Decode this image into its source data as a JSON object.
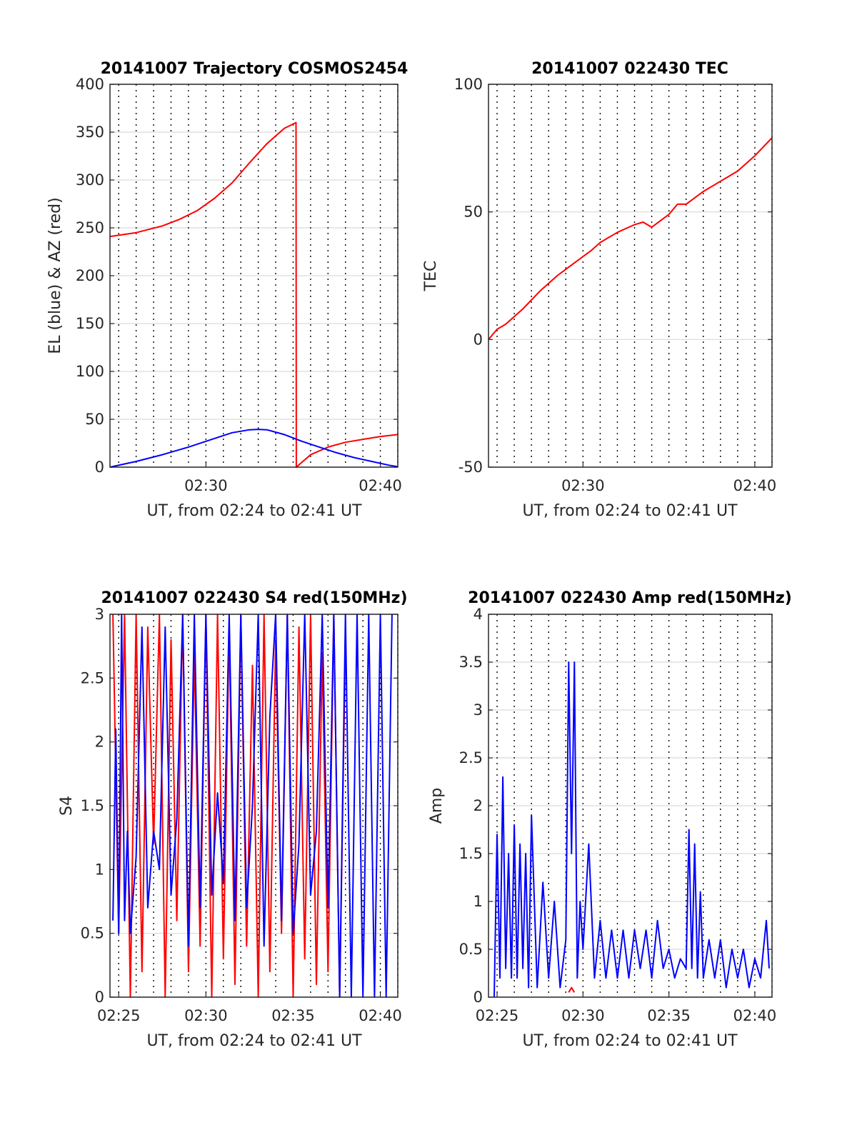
{
  "chart_data": [
    {
      "type": "line",
      "title": "20141007 Trajectory COSMOS2454",
      "xlabel": "UT, from 02:24 to 02:41 UT",
      "ylabel": "EL (blue) & AZ (red)",
      "xlim": [
        "02:24:30",
        "02:41:00"
      ],
      "ylim": [
        0,
        400
      ],
      "x_ticks": [
        "02:30",
        "02:40"
      ],
      "y_ticks": [
        "0",
        "50",
        "100",
        "150",
        "200",
        "250",
        "300",
        "350",
        "400"
      ],
      "grid": true,
      "series": [
        {
          "color": "#ff0000",
          "x": [
            "02:24:30",
            "02:26:00",
            "02:27:30",
            "02:28:30",
            "02:29:30",
            "02:30:30",
            "02:31:30",
            "02:32:30",
            "02:33:30",
            "02:34:30",
            "02:35:10",
            "02:35:11",
            "02:36:00",
            "02:37:00",
            "02:38:00",
            "02:39:00",
            "02:40:00",
            "02:41:00"
          ],
          "y": [
            241,
            245,
            252,
            259,
            268,
            281,
            297,
            318,
            338,
            354,
            360,
            0,
            13,
            21,
            26,
            29,
            32,
            34
          ]
        },
        {
          "color": "#0000ff",
          "x": [
            "02:24:30",
            "02:26:00",
            "02:27:30",
            "02:29:00",
            "02:30:30",
            "02:31:30",
            "02:32:30",
            "02:33:00",
            "02:33:30",
            "02:34:30",
            "02:35:30",
            "02:36:30",
            "02:37:30",
            "02:38:30",
            "02:39:30",
            "02:40:30",
            "02:41:00"
          ],
          "y": [
            0,
            6,
            13,
            21,
            30,
            36,
            39,
            39.5,
            39,
            34,
            27,
            21,
            15,
            10,
            6,
            2,
            0.5
          ]
        }
      ]
    },
    {
      "type": "line",
      "title": "20141007 022430 TEC",
      "xlabel": "UT, from 02:24 to 02:41 UT",
      "ylabel": "TEC",
      "xlim": [
        "02:24:30",
        "02:41:00"
      ],
      "ylim": [
        -50,
        100
      ],
      "x_ticks": [
        "02:30",
        "02:40"
      ],
      "y_ticks": [
        "-50",
        "0",
        "50",
        "100"
      ],
      "grid": true,
      "series": [
        {
          "color": "#ff0000",
          "x": [
            "02:24:30",
            "02:25:00",
            "02:25:30",
            "02:26:30",
            "02:27:30",
            "02:28:30",
            "02:29:30",
            "02:30:30",
            "02:31:00",
            "02:32:00",
            "02:33:00",
            "02:33:30",
            "02:34:00",
            "02:35:00",
            "02:35:30",
            "02:36:00",
            "02:37:00",
            "02:38:00",
            "02:39:00",
            "02:40:00",
            "02:41:00"
          ],
          "y": [
            0,
            4,
            6,
            12,
            19,
            25,
            30,
            35,
            38,
            42,
            45,
            46,
            44,
            49,
            53,
            53,
            58,
            62,
            66,
            72,
            79
          ]
        }
      ]
    },
    {
      "type": "line",
      "title": "20141007 022430 S4 red(150MHz)",
      "xlabel": "UT, from 02:24 to 02:41 UT",
      "ylabel": "S4",
      "xlim": [
        "02:24:30",
        "02:41:00"
      ],
      "ylim": [
        0,
        3
      ],
      "x_ticks": [
        "02:25",
        "02:30",
        "02:35",
        "02:40"
      ],
      "y_ticks": [
        "0",
        "0.5",
        "1",
        "1.5",
        "2",
        "2.5",
        "3"
      ],
      "grid": true,
      "series": [
        {
          "color": "#ff0000",
          "x": [
            "02:24:40",
            "02:25:00",
            "02:25:20",
            "02:25:40",
            "02:26:00",
            "02:26:20",
            "02:26:40",
            "02:27:00",
            "02:27:20",
            "02:27:40",
            "02:28:00",
            "02:28:20",
            "02:28:40",
            "02:29:00",
            "02:29:20",
            "02:29:40",
            "02:30:00",
            "02:30:20",
            "02:30:40",
            "02:31:00",
            "02:31:20",
            "02:31:40",
            "02:32:00",
            "02:32:20",
            "02:32:40",
            "02:33:00",
            "02:33:20",
            "02:33:40",
            "02:34:00",
            "02:34:20",
            "02:34:40",
            "02:35:00",
            "02:35:20",
            "02:35:40",
            "02:36:00",
            "02:36:20",
            "02:36:40",
            "02:37:00",
            "02:37:20",
            "02:37:40",
            "02:38:00"
          ],
          "y": [
            3,
            0.5,
            3,
            0,
            3,
            0.2,
            2.9,
            1.2,
            3,
            0,
            2.8,
            0.6,
            3,
            0.2,
            2.7,
            0.4,
            3,
            0,
            3,
            0.3,
            2.9,
            0.1,
            3,
            0.4,
            2.6,
            0,
            3,
            0.2,
            2.8,
            0.5,
            3,
            0,
            2.9,
            0.3,
            3,
            0.1,
            2.7,
            0.2,
            3,
            0,
            2.8
          ]
        },
        {
          "color": "#0000ff",
          "x": [
            "02:24:40",
            "02:24:50",
            "02:25:00",
            "02:25:10",
            "02:25:20",
            "02:25:30",
            "02:25:40",
            "02:26:00",
            "02:26:20",
            "02:26:40",
            "02:27:00",
            "02:27:20",
            "02:27:40",
            "02:28:00",
            "02:28:20",
            "02:28:40",
            "02:29:00",
            "02:29:20",
            "02:29:40",
            "02:30:00",
            "02:30:20",
            "02:30:40",
            "02:31:00",
            "02:31:20",
            "02:31:40",
            "02:32:00",
            "02:32:20",
            "02:32:40",
            "02:33:00",
            "02:33:20",
            "02:33:40",
            "02:34:00",
            "02:34:20",
            "02:34:40",
            "02:35:00",
            "02:35:20",
            "02:35:40",
            "02:36:00",
            "02:36:20",
            "02:36:40",
            "02:37:00",
            "02:37:20",
            "02:37:40",
            "02:38:00",
            "02:38:20",
            "02:38:40",
            "02:39:00",
            "02:39:20",
            "02:39:40",
            "02:40:00",
            "02:40:20",
            "02:40:40"
          ],
          "y": [
            0.6,
            2.1,
            0.5,
            3,
            0.6,
            1.3,
            0.5,
            1.1,
            2.9,
            0.7,
            1.3,
            1.0,
            2.9,
            0.8,
            1.4,
            3,
            0.4,
            3,
            0.7,
            3,
            0.8,
            1.6,
            0.9,
            3,
            0.6,
            3,
            0.7,
            1.5,
            3,
            0.4,
            2.2,
            3,
            0.6,
            3,
            0.5,
            1.2,
            3,
            0.8,
            1.3,
            3,
            0.7,
            3,
            0,
            3,
            0,
            3,
            0,
            3,
            0,
            3,
            0,
            3
          ]
        }
      ]
    },
    {
      "type": "line",
      "title": "20141007 022430 Amp red(150MHz)",
      "xlabel": "UT, from 02:24 to 02:41 UT",
      "ylabel": "Amp",
      "xlim": [
        "02:24:30",
        "02:41:00"
      ],
      "ylim": [
        0,
        4
      ],
      "x_ticks": [
        "02:25",
        "02:30",
        "02:35",
        "02:40"
      ],
      "y_ticks": [
        "0",
        "0.5",
        "1",
        "1.5",
        "2",
        "2.5",
        "3",
        "3.5",
        "4"
      ],
      "grid": true,
      "series": [
        {
          "color": "#ff0000",
          "x": [
            "02:29:10",
            "02:29:20",
            "02:29:30"
          ],
          "y": [
            0.05,
            0.1,
            0.05
          ]
        },
        {
          "color": "#0000ff",
          "x": [
            "02:24:50",
            "02:25:00",
            "02:25:10",
            "02:25:20",
            "02:25:30",
            "02:25:40",
            "02:25:50",
            "02:26:00",
            "02:26:10",
            "02:26:20",
            "02:26:30",
            "02:26:40",
            "02:26:50",
            "02:27:00",
            "02:27:20",
            "02:27:40",
            "02:28:00",
            "02:28:20",
            "02:28:40",
            "02:29:00",
            "02:29:10",
            "02:29:20",
            "02:29:30",
            "02:29:40",
            "02:29:50",
            "02:30:00",
            "02:30:20",
            "02:30:40",
            "02:31:00",
            "02:31:20",
            "02:31:40",
            "02:32:00",
            "02:32:20",
            "02:32:40",
            "02:33:00",
            "02:33:20",
            "02:33:40",
            "02:34:00",
            "02:34:20",
            "02:34:40",
            "02:35:00",
            "02:35:20",
            "02:35:40",
            "02:36:00",
            "02:36:10",
            "02:36:20",
            "02:36:30",
            "02:36:40",
            "02:36:50",
            "02:37:00",
            "02:37:20",
            "02:37:40",
            "02:38:00",
            "02:38:20",
            "02:38:40",
            "02:39:00",
            "02:39:20",
            "02:39:40",
            "02:40:00",
            "02:40:20",
            "02:40:40",
            "02:40:50"
          ],
          "y": [
            0,
            1.7,
            0.2,
            2.3,
            0.3,
            1.5,
            0.2,
            1.8,
            0.2,
            1.6,
            0.3,
            1.5,
            0.1,
            1.9,
            0.1,
            1.2,
            0.2,
            1.0,
            0.1,
            0.6,
            3.5,
            1.5,
            3.5,
            0.2,
            1.0,
            0.5,
            1.6,
            0.2,
            0.8,
            0.2,
            0.7,
            0.2,
            0.7,
            0.2,
            0.7,
            0.3,
            0.7,
            0.2,
            0.8,
            0.3,
            0.5,
            0.2,
            0.4,
            0.3,
            1.75,
            0.3,
            1.6,
            0.2,
            1.1,
            0.2,
            0.6,
            0.2,
            0.6,
            0.1,
            0.5,
            0.2,
            0.5,
            0.1,
            0.4,
            0.2,
            0.8,
            0.3
          ]
        }
      ]
    }
  ]
}
